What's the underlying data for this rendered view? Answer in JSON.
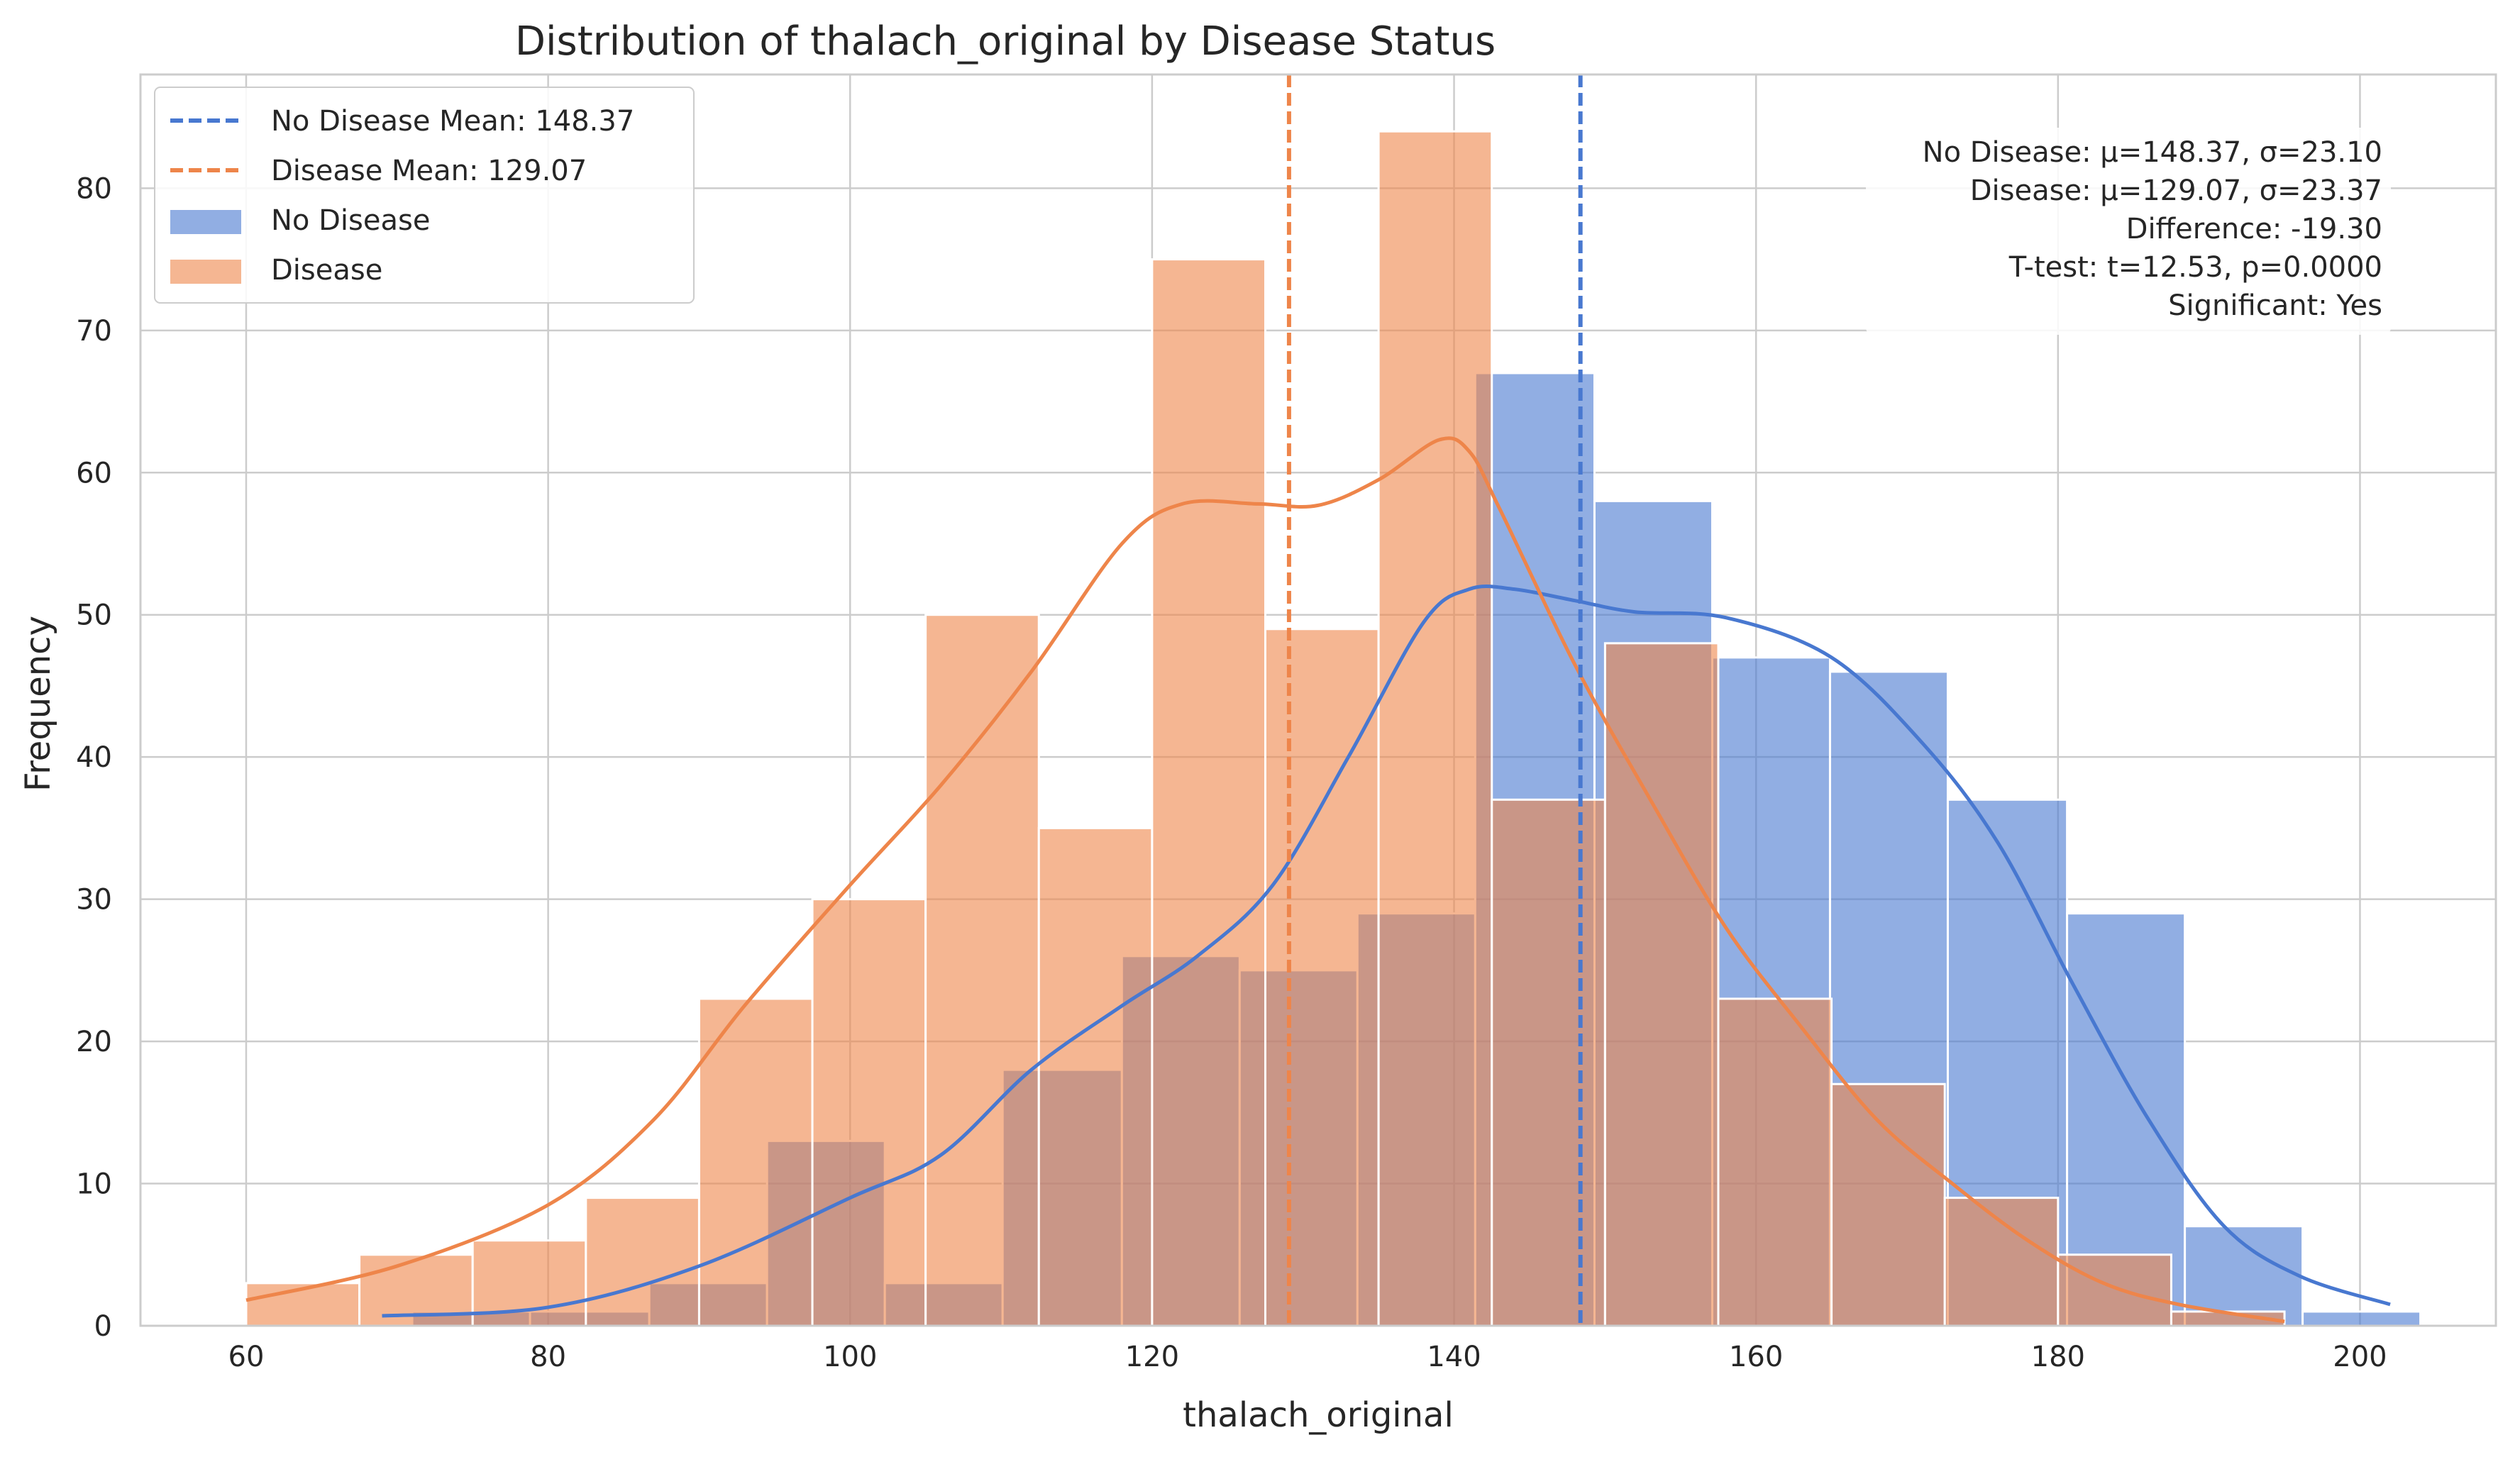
{
  "chart_data": {
    "type": "bar",
    "title": "Distribution of thalach_original by Disease Status",
    "xlabel": "thalach_original",
    "ylabel": "Frequency",
    "xlim": [
      53,
      209
    ],
    "ylim": [
      0,
      88
    ],
    "xticks": [
      60,
      80,
      100,
      120,
      140,
      160,
      180,
      200
    ],
    "yticks": [
      0,
      10,
      20,
      30,
      40,
      50,
      60,
      70,
      80
    ],
    "grid": true,
    "legend_position": "top-left",
    "series": [
      {
        "name": "No Disease",
        "color": "#4878d0",
        "bin_edges": [
          71,
          78.8,
          86.7,
          94.5,
          102.3,
          110.1,
          118,
          125.8,
          133.6,
          141.4,
          149.3,
          157.1,
          164.9,
          172.7,
          180.6,
          188.4,
          196.2,
          204
        ],
        "counts": [
          1,
          1,
          3,
          13,
          3,
          18,
          26,
          25,
          29,
          67,
          58,
          47,
          46,
          37,
          29,
          7,
          1
        ],
        "kde_x": [
          69,
          80,
          90,
          100,
          106,
          112,
          118,
          123,
          128,
          133,
          138,
          141,
          144,
          148,
          152,
          158,
          165,
          171,
          176,
          181,
          186,
          191,
          196,
          202
        ],
        "kde_y": [
          0.7,
          1.3,
          4.2,
          9,
          12,
          18,
          22.5,
          26,
          31,
          40,
          49.5,
          51.8,
          51.8,
          51,
          50.2,
          49.8,
          47,
          41,
          34,
          24,
          14.5,
          7,
          3.5,
          1.5
        ]
      },
      {
        "name": "Disease",
        "color": "#ee854a",
        "bin_edges": [
          60,
          67.5,
          75,
          82.5,
          90,
          97.5,
          105,
          112.5,
          120,
          127.5,
          135,
          142.5,
          150,
          157.5,
          165,
          172.5,
          180,
          187.5,
          195
        ],
        "counts": [
          3,
          5,
          6,
          9,
          23,
          30,
          50,
          35,
          75,
          49,
          84,
          37,
          48,
          23,
          17,
          9,
          5,
          1
        ],
        "kde_x": [
          60,
          70,
          80,
          87,
          93,
          100,
          106,
          112,
          118,
          122,
          127,
          131,
          135,
          139,
          141,
          143,
          148,
          153,
          158,
          163,
          168,
          173,
          178,
          183,
          188,
          195
        ],
        "kde_y": [
          1.8,
          4.2,
          8.5,
          14.5,
          22.5,
          31,
          38,
          46,
          55,
          57.8,
          57.8,
          57.7,
          59.5,
          62.3,
          61.5,
          57.5,
          46.5,
          37,
          28,
          21,
          14.5,
          10,
          6,
          3,
          1.5,
          0.3
        ]
      }
    ],
    "mean_lines": [
      {
        "label": "No Disease Mean: 148.37",
        "x": 148.37,
        "color": "#4878d0"
      },
      {
        "label": "Disease Mean: 129.07",
        "x": 129.07,
        "color": "#ee854a"
      }
    ],
    "stats_box": [
      "No Disease: μ=148.37, σ=23.10",
      "Disease: μ=129.07, σ=23.37",
      "Difference: -19.30",
      "T-test: t=12.53, p=0.0000",
      "Significant: Yes"
    ]
  }
}
